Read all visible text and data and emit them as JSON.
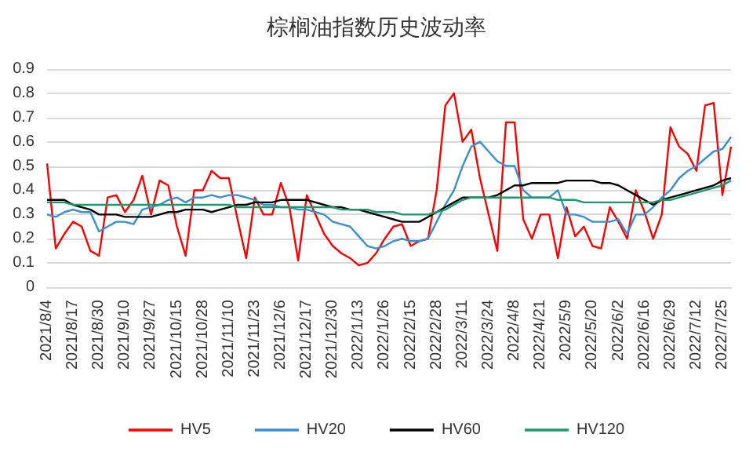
{
  "chart_data": {
    "type": "line",
    "title": "棕榈油指数历史波动率",
    "categories": [
      "2021/8/4",
      null,
      null,
      "2021/8/17",
      null,
      null,
      "2021/8/30",
      null,
      null,
      "2021/9/10",
      null,
      null,
      "2021/9/27",
      null,
      null,
      "2021/10/15",
      null,
      null,
      "2021/10/28",
      null,
      null,
      "2021/11/10",
      null,
      null,
      "2021/11/23",
      null,
      null,
      "2021/12/6",
      null,
      null,
      "2021/12/17",
      null,
      null,
      "2021/12/30",
      null,
      null,
      "2022/1/13",
      null,
      null,
      "2022/1/26",
      null,
      null,
      "2022/2/15",
      null,
      null,
      "2022/2/28",
      null,
      null,
      "2022/3/11",
      null,
      null,
      "2022/3/24",
      null,
      null,
      "2022/4/8",
      null,
      null,
      "2022/4/21",
      null,
      null,
      "2022/5/9",
      null,
      null,
      "2022/5/20",
      null,
      null,
      "2022/6/2",
      null,
      null,
      "2022/6/16",
      null,
      null,
      "2022/6/29",
      null,
      null,
      "2022/7/12",
      null,
      null,
      "2022/7/25",
      null
    ],
    "series": [
      {
        "name": "HV5",
        "color": "#ff0000",
        "values": [
          0.51,
          0.16,
          0.22,
          0.27,
          0.25,
          0.15,
          0.13,
          0.37,
          0.38,
          0.31,
          0.36,
          0.46,
          0.3,
          0.44,
          0.42,
          0.25,
          0.13,
          0.4,
          0.4,
          0.48,
          0.45,
          0.45,
          0.28,
          0.12,
          0.37,
          0.3,
          0.3,
          0.43,
          0.33,
          0.11,
          0.38,
          0.3,
          0.22,
          0.17,
          0.14,
          0.12,
          0.09,
          0.1,
          0.14,
          0.2,
          0.25,
          0.26,
          0.17,
          0.19,
          0.2,
          0.4,
          0.75,
          0.8,
          0.6,
          0.65,
          0.45,
          0.3,
          0.15,
          0.68,
          0.68,
          0.28,
          0.2,
          0.3,
          0.3,
          0.12,
          0.33,
          0.21,
          0.25,
          0.17,
          0.16,
          0.33,
          0.27,
          0.2,
          0.4,
          0.31,
          0.2,
          0.3,
          0.66,
          0.58,
          0.55,
          0.48,
          0.75,
          0.76,
          0.38,
          0.58
        ]
      },
      {
        "name": "HV20",
        "color": "#3a8fd0",
        "values": [
          0.3,
          0.29,
          0.31,
          0.32,
          0.31,
          0.31,
          0.23,
          0.25,
          0.27,
          0.27,
          0.26,
          0.32,
          0.33,
          0.34,
          0.36,
          0.37,
          0.35,
          0.37,
          0.37,
          0.38,
          0.37,
          0.38,
          0.38,
          0.37,
          0.36,
          0.34,
          0.34,
          0.33,
          0.33,
          0.32,
          0.32,
          0.31,
          0.3,
          0.27,
          0.26,
          0.25,
          0.21,
          0.17,
          0.16,
          0.17,
          0.19,
          0.2,
          0.19,
          0.19,
          0.2,
          0.27,
          0.34,
          0.4,
          0.5,
          0.58,
          0.6,
          0.56,
          0.52,
          0.5,
          0.5,
          0.4,
          0.37,
          0.37,
          0.37,
          0.4,
          0.3,
          0.3,
          0.29,
          0.27,
          0.27,
          0.27,
          0.28,
          0.22,
          0.3,
          0.3,
          0.33,
          0.37,
          0.4,
          0.45,
          0.48,
          0.5,
          0.53,
          0.56,
          0.57,
          0.62
        ]
      },
      {
        "name": "HV60",
        "color": "#000000",
        "values": [
          0.36,
          0.36,
          0.36,
          0.34,
          0.33,
          0.32,
          0.3,
          0.3,
          0.3,
          0.29,
          0.29,
          0.29,
          0.29,
          0.3,
          0.31,
          0.31,
          0.32,
          0.32,
          0.32,
          0.31,
          0.32,
          0.33,
          0.34,
          0.34,
          0.35,
          0.35,
          0.35,
          0.36,
          0.36,
          0.36,
          0.36,
          0.35,
          0.34,
          0.33,
          0.33,
          0.32,
          0.32,
          0.31,
          0.3,
          0.29,
          0.28,
          0.27,
          0.27,
          0.27,
          0.29,
          0.31,
          0.33,
          0.35,
          0.37,
          0.37,
          0.37,
          0.37,
          0.38,
          0.4,
          0.42,
          0.42,
          0.43,
          0.43,
          0.43,
          0.43,
          0.44,
          0.44,
          0.44,
          0.44,
          0.43,
          0.43,
          0.42,
          0.4,
          0.38,
          0.36,
          0.34,
          0.36,
          0.37,
          0.38,
          0.39,
          0.4,
          0.41,
          0.42,
          0.44,
          0.45
        ]
      },
      {
        "name": "HV120",
        "color": "#1a9a6a",
        "values": [
          0.35,
          0.35,
          0.35,
          0.34,
          0.34,
          0.34,
          0.34,
          0.34,
          0.34,
          0.34,
          0.34,
          0.34,
          0.34,
          0.34,
          0.34,
          0.34,
          0.34,
          0.34,
          0.34,
          0.34,
          0.34,
          0.34,
          0.33,
          0.33,
          0.33,
          0.33,
          0.33,
          0.33,
          0.33,
          0.33,
          0.33,
          0.33,
          0.33,
          0.33,
          0.32,
          0.32,
          0.32,
          0.32,
          0.31,
          0.31,
          0.31,
          0.3,
          0.3,
          0.3,
          0.3,
          0.31,
          0.32,
          0.34,
          0.36,
          0.37,
          0.37,
          0.37,
          0.37,
          0.37,
          0.37,
          0.37,
          0.37,
          0.37,
          0.37,
          0.36,
          0.36,
          0.36,
          0.35,
          0.35,
          0.35,
          0.35,
          0.35,
          0.35,
          0.35,
          0.35,
          0.35,
          0.36,
          0.36,
          0.37,
          0.38,
          0.39,
          0.4,
          0.41,
          0.42,
          0.44
        ]
      }
    ],
    "ylim": [
      0,
      0.9
    ],
    "yticks": [
      0,
      0.1,
      0.2,
      0.3,
      0.4,
      0.5,
      0.6,
      0.7,
      0.8,
      0.9
    ],
    "grid": "y",
    "legend": "bottom",
    "marker": "none",
    "line_style": "solid"
  }
}
